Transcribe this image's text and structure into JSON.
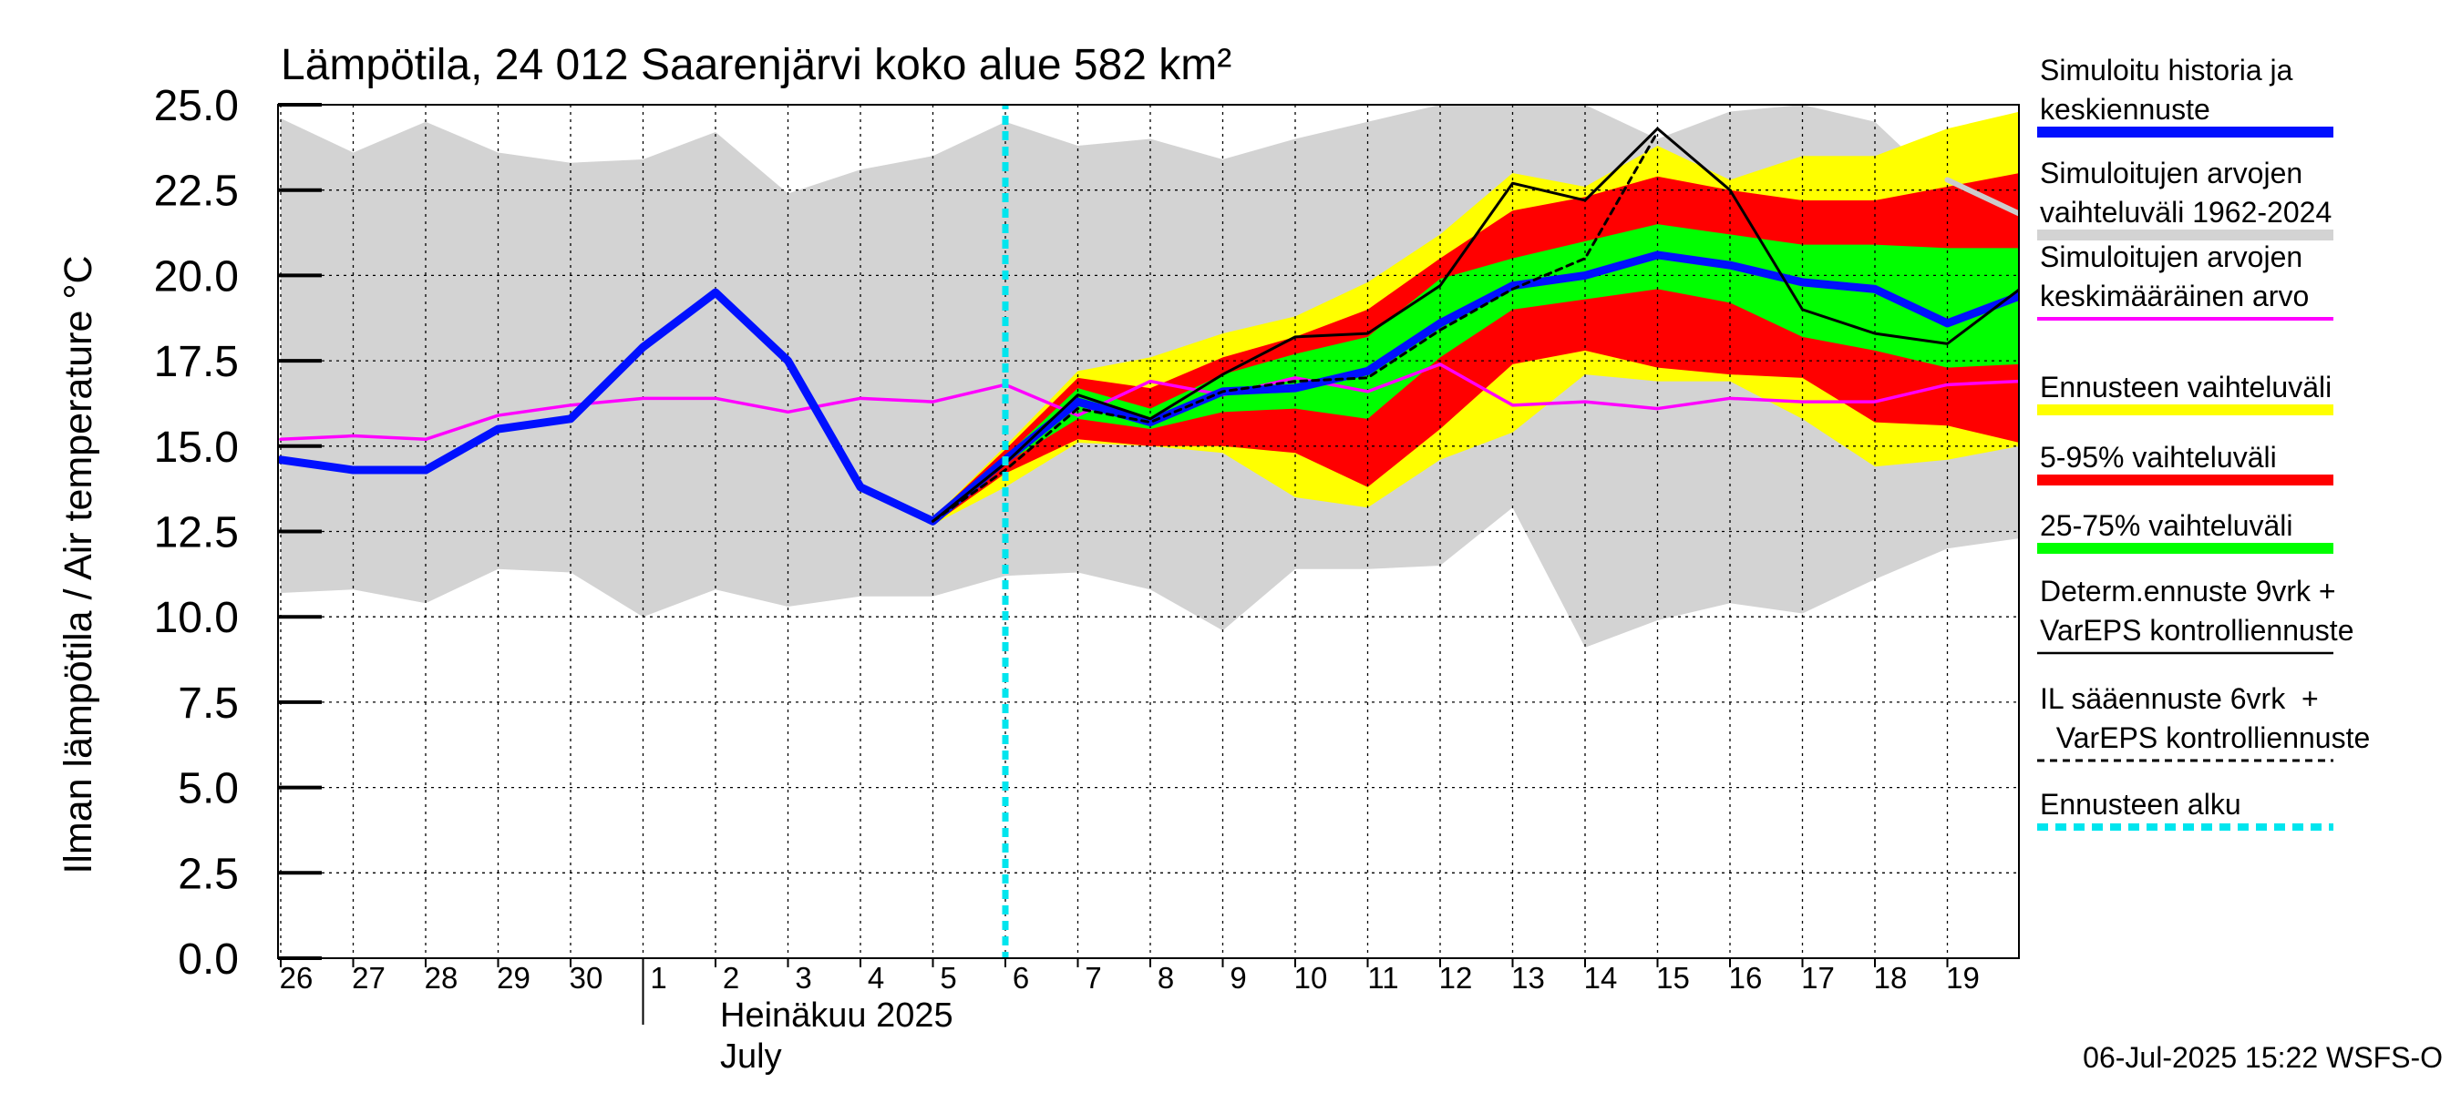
{
  "chart_data": {
    "type": "line",
    "title": "Lämpötila, 24 012 Saarenjärvi koko alue 582 km²",
    "ylabel": "Ilman lämpötila / Air temperature   °C",
    "month_label": "Heinäkuu  2025",
    "month_label_en": "July",
    "footer": "06-Jul-2025 15:22 WSFS-O",
    "ylim": [
      0,
      25
    ],
    "yticks": [
      "0.0",
      "2.5",
      "5.0",
      "7.5",
      "10.0",
      "12.5",
      "15.0",
      "17.5",
      "20.0",
      "22.5",
      "25.0"
    ],
    "x_range": [
      0,
      24
    ],
    "x_ticks": [
      {
        "label": "26",
        "x": 0
      },
      {
        "label": "27",
        "x": 1
      },
      {
        "label": "28",
        "x": 2
      },
      {
        "label": "29",
        "x": 3
      },
      {
        "label": "30",
        "x": 4
      },
      {
        "label": "1",
        "x": 5
      },
      {
        "label": "2",
        "x": 6
      },
      {
        "label": "3",
        "x": 7
      },
      {
        "label": "4",
        "x": 8
      },
      {
        "label": "5",
        "x": 9
      },
      {
        "label": "6",
        "x": 10
      },
      {
        "label": "7",
        "x": 11
      },
      {
        "label": "8",
        "x": 12
      },
      {
        "label": "9",
        "x": 13
      },
      {
        "label": "10",
        "x": 14
      },
      {
        "label": "11",
        "x": 15
      },
      {
        "label": "12",
        "x": 16
      },
      {
        "label": "13",
        "x": 17
      },
      {
        "label": "14",
        "x": 18
      },
      {
        "label": "15",
        "x": 19
      },
      {
        "label": "16",
        "x": 20
      },
      {
        "label": "17",
        "x": 21
      },
      {
        "label": "18",
        "x": 22
      },
      {
        "label": "19",
        "x": 23
      }
    ],
    "month_boundary_x": 5,
    "forecast_start_x": 10,
    "historical_range": {
      "x": [
        0,
        1,
        2,
        3,
        4,
        5,
        6,
        7,
        8,
        9,
        10,
        11,
        12,
        13,
        14,
        15,
        16,
        17,
        18,
        19,
        20,
        21,
        22,
        23,
        24
      ],
      "upper": [
        24.6,
        23.6,
        24.5,
        23.6,
        23.3,
        23.4,
        24.2,
        22.4,
        23.1,
        23.5,
        24.5,
        23.8,
        24.0,
        23.4,
        24.0,
        24.5,
        25.0,
        25.0,
        25.0,
        24.0,
        24.8,
        25.0,
        24.5,
        22.5,
        22.0
      ],
      "lower": [
        10.7,
        10.8,
        10.4,
        11.4,
        11.3,
        10.0,
        10.8,
        10.3,
        10.6,
        10.6,
        11.2,
        11.3,
        10.8,
        9.6,
        11.4,
        11.4,
        11.5,
        13.2,
        9.1,
        9.9,
        10.4,
        10.1,
        11.1,
        12.0,
        12.3
      ]
    },
    "forecast_bands": {
      "x": [
        9,
        10,
        11,
        12,
        13,
        14,
        15,
        16,
        17,
        18,
        19,
        20,
        21,
        22,
        23,
        24
      ],
      "yellow_upper": [
        12.9,
        15.0,
        17.2,
        17.6,
        18.3,
        18.8,
        19.8,
        21.2,
        23.0,
        22.6,
        23.8,
        22.8,
        23.5,
        23.5,
        24.3,
        24.8
      ],
      "yellow_lower": [
        12.7,
        13.8,
        15.1,
        15.0,
        14.8,
        13.5,
        13.2,
        14.6,
        15.4,
        17.1,
        16.9,
        16.9,
        15.8,
        14.4,
        14.6,
        15.0
      ],
      "red_upper": [
        12.9,
        14.9,
        17.0,
        16.7,
        17.6,
        18.2,
        19.0,
        20.5,
        21.9,
        22.3,
        22.9,
        22.5,
        22.2,
        22.2,
        22.6,
        23.0
      ],
      "red_lower": [
        12.7,
        14.2,
        15.2,
        15.0,
        15.0,
        14.8,
        13.8,
        15.5,
        17.4,
        17.8,
        17.3,
        17.1,
        17.0,
        15.7,
        15.6,
        15.1
      ],
      "green_upper": [
        12.8,
        14.7,
        16.7,
        16.1,
        17.1,
        17.7,
        18.2,
        19.9,
        20.5,
        21.0,
        21.5,
        21.2,
        20.9,
        20.9,
        20.8,
        20.8
      ],
      "green_lower": [
        12.8,
        14.5,
        15.8,
        15.5,
        16.0,
        16.1,
        15.8,
        17.6,
        19.0,
        19.3,
        19.6,
        19.2,
        18.2,
        17.8,
        17.3,
        17.4
      ]
    },
    "series": [
      {
        "name": "Simuloitu historia ja keskiennuste",
        "color": "#0010ff",
        "x": [
          0,
          1,
          2,
          3,
          4,
          5,
          6,
          7,
          8,
          9,
          10,
          11,
          12,
          13,
          14,
          15,
          16,
          17,
          18,
          19,
          20,
          21,
          22,
          23,
          24
        ],
        "y": [
          14.6,
          14.3,
          14.3,
          15.5,
          15.8,
          17.9,
          19.5,
          17.5,
          13.8,
          12.8,
          14.6,
          16.3,
          15.7,
          16.6,
          16.7,
          17.2,
          18.6,
          19.7,
          20.0,
          20.6,
          20.3,
          19.8,
          19.6,
          18.6,
          19.4
        ]
      },
      {
        "name": "Simuloitujen arvojen keskimääräinen arvo",
        "color": "#ff00ff",
        "x": [
          0,
          1,
          2,
          3,
          4,
          5,
          6,
          7,
          8,
          9,
          10,
          11,
          12,
          13,
          14,
          15,
          16,
          17,
          18,
          19,
          20,
          21,
          22,
          23,
          24
        ],
        "y": [
          15.2,
          15.3,
          15.2,
          15.9,
          16.2,
          16.4,
          16.4,
          16.0,
          16.4,
          16.3,
          16.8,
          15.9,
          16.9,
          16.5,
          17.0,
          16.6,
          17.4,
          16.2,
          16.3,
          16.1,
          16.4,
          16.3,
          16.3,
          16.8,
          16.9
        ]
      },
      {
        "name": "Determ.ennuste 9vrk + VarEPS kontrolliennuste",
        "color": "#000000",
        "x": [
          9,
          10,
          11,
          12,
          13,
          14,
          15,
          16,
          17,
          18,
          19,
          20,
          21,
          22,
          23,
          24
        ],
        "y": [
          12.8,
          14.5,
          16.5,
          15.8,
          17.1,
          18.2,
          18.3,
          19.7,
          22.7,
          22.2,
          24.3,
          22.5,
          19.0,
          18.3,
          18.0,
          19.6
        ]
      },
      {
        "name": "IL sääennuste 6vrk + VarEPS kontrolliennuste",
        "color": "#000000",
        "x": [
          9,
          10,
          11,
          12,
          13,
          14,
          15,
          16,
          17,
          18,
          19
        ],
        "y": [
          12.8,
          14.3,
          16.1,
          15.7,
          16.6,
          16.9,
          17.0,
          18.4,
          19.6,
          20.5,
          24.2
        ]
      },
      {
        "name": "Simuloitujen arvojen vaihteluväli 1962-2024 (max)",
        "color": "#cccccc",
        "x": [
          23,
          24
        ],
        "y": [
          22.8,
          21.8
        ]
      }
    ],
    "legend": [
      {
        "label": "Simuloitu historia ja\nkeskiennuste",
        "color": "#0010ff",
        "style": "thick"
      },
      {
        "label": "Simuloitujen arvojen\nvaihteluväli 1962-2024",
        "color": "#d3d3d3",
        "style": "thick"
      },
      {
        "label": "Simuloitujen arvojen\nkeskimääräinen arvo",
        "color": "#ff00ff",
        "style": "thin"
      },
      {
        "label": "Ennusteen vaihteluväli",
        "color": "#ffff00",
        "style": "thick"
      },
      {
        "label": "5-95% vaihteluväli",
        "color": "#ff0000",
        "style": "thick"
      },
      {
        "label": "25-75% vaihteluväli",
        "color": "#00ff00",
        "style": "thick"
      },
      {
        "label": "Determ.ennuste 9vrk +\nVarEPS kontrolliennuste",
        "color": "#000000",
        "style": "thinline"
      },
      {
        "label": "IL sääennuste 6vrk  +\n  VarEPS kontrolliennuste",
        "color": "#000000",
        "style": "dashed"
      },
      {
        "label": "Ennusteen alku",
        "color": "#00e5ee",
        "style": "dotted"
      }
    ],
    "colors": {
      "historical_band": "#d3d3d3",
      "forecast_range": "#ffff00",
      "band_5_95": "#ff0000",
      "band_25_75": "#00ff00",
      "forecast_start": "#00e5ee",
      "grid": "#000000"
    },
    "grid": true,
    "legend_position": "right"
  }
}
